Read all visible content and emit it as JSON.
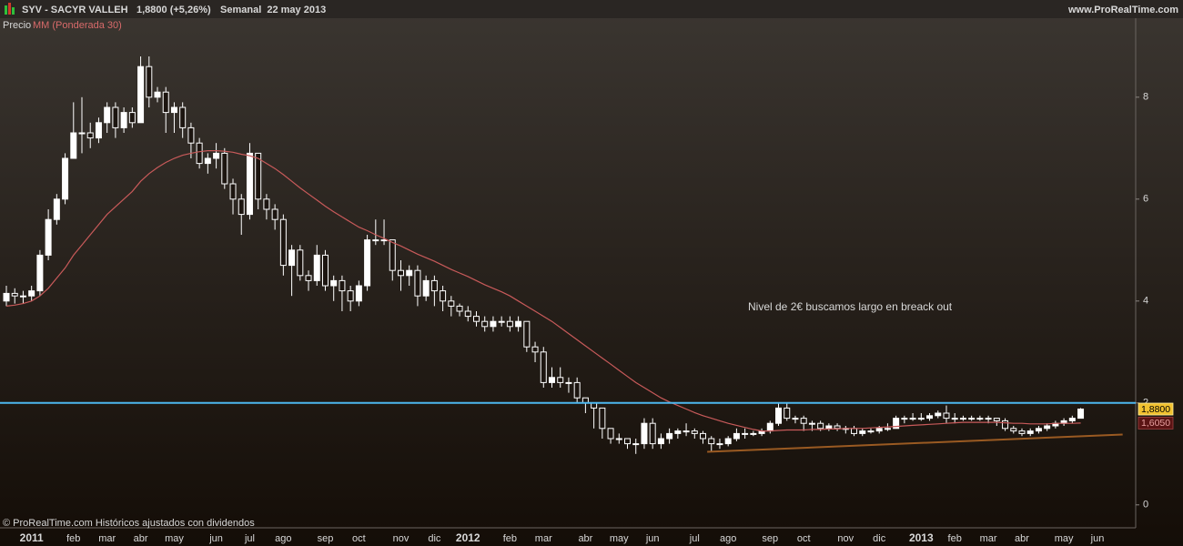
{
  "chart_data": {
    "type": "candlestick",
    "title": "SYV - SACYR VALLEH",
    "subtitle": "1,8800 (+5,26%)",
    "period": "Semanal  22 may 2013",
    "source": "www.ProRealTime.com",
    "footer": "© ProRealTime.com Históricos ajustados con dividendos",
    "annotation": "Nivel de 2€ buscamos largo en breack out",
    "categories": [
      null,
      null,
      null,
      "2011",
      null,
      null,
      null,
      null,
      "feb",
      null,
      null,
      null,
      "mar",
      null,
      null,
      null,
      "abr",
      null,
      null,
      null,
      "may",
      null,
      null,
      null,
      null,
      "jun",
      null,
      null,
      null,
      "jul",
      null,
      null,
      null,
      "ago",
      null,
      null,
      null,
      null,
      "sep",
      null,
      null,
      null,
      "oct",
      null,
      null,
      null,
      null,
      "nov",
      null,
      null,
      null,
      "dic",
      null,
      null,
      null,
      "2012",
      null,
      null,
      null,
      null,
      "feb",
      null,
      null,
      null,
      "mar",
      null,
      null,
      null,
      null,
      "abr",
      null,
      null,
      null,
      "may",
      null,
      null,
      null,
      "jun",
      null,
      null,
      null,
      null,
      "jul",
      null,
      null,
      null,
      "ago",
      null,
      null,
      null,
      null,
      "sep",
      null,
      null,
      null,
      "oct",
      null,
      null,
      null,
      null,
      "nov",
      null,
      null,
      null,
      "dic",
      null,
      null,
      null,
      null,
      "2013",
      null,
      null,
      null,
      "feb",
      null,
      null,
      null,
      "mar",
      null,
      null,
      null,
      "abr",
      null,
      null,
      null,
      null,
      "may",
      null,
      null,
      null,
      "jun"
    ],
    "series": [
      {
        "name": "Precio",
        "color": "#ffffff",
        "open": [
          4.0,
          4.15,
          4.1,
          4.1,
          4.2,
          4.9,
          5.6,
          6.0,
          6.8,
          7.3,
          7.3,
          7.2,
          7.5,
          7.8,
          7.4,
          7.7,
          7.5,
          8.6,
          8.0,
          8.1,
          7.7,
          7.8,
          7.4,
          7.1,
          6.7,
          6.8,
          6.9,
          6.3,
          6.0,
          5.7,
          6.9,
          6.0,
          5.8,
          5.6,
          4.7,
          5.0,
          4.5,
          4.4,
          4.9,
          4.3,
          4.4,
          4.2,
          4.0,
          4.3,
          5.2,
          5.2,
          5.2,
          4.6,
          4.5,
          4.6,
          4.1,
          4.4,
          4.2,
          4.0,
          3.9,
          3.8,
          3.7,
          3.6,
          3.5,
          3.6,
          3.6,
          3.5,
          3.6,
          3.1,
          3.0,
          2.4,
          2.5,
          2.4,
          2.4,
          2.1,
          2.0,
          1.9,
          1.5,
          1.3,
          1.3,
          1.2,
          1.2,
          1.6,
          1.2,
          1.3,
          1.4,
          1.45,
          1.45,
          1.4,
          1.3,
          1.2,
          1.2,
          1.3,
          1.4,
          1.4,
          1.4,
          1.45,
          1.6,
          1.9,
          1.7,
          1.7,
          1.6,
          1.6,
          1.5,
          1.55,
          1.5,
          1.5,
          1.4,
          1.45,
          1.45,
          1.5,
          1.5,
          1.7,
          1.7,
          1.7,
          1.7,
          1.75,
          1.8,
          1.7,
          1.7,
          1.7,
          1.7,
          1.7,
          1.7,
          1.65,
          1.5,
          1.45,
          1.4,
          1.45,
          1.5,
          1.55,
          1.6,
          1.65,
          1.7,
          null,
          null
        ],
        "high": [
          4.3,
          4.25,
          4.2,
          4.3,
          5.0,
          5.8,
          6.1,
          6.9,
          7.9,
          8.0,
          7.5,
          7.6,
          7.9,
          7.9,
          7.8,
          7.8,
          8.8,
          8.8,
          8.2,
          8.2,
          7.9,
          7.9,
          7.5,
          7.2,
          6.9,
          7.1,
          7.0,
          6.4,
          6.1,
          7.1,
          6.9,
          6.1,
          5.9,
          5.7,
          5.1,
          5.1,
          4.6,
          5.1,
          5.0,
          4.5,
          4.5,
          4.3,
          4.4,
          5.3,
          5.6,
          5.6,
          5.2,
          4.8,
          4.7,
          4.7,
          4.5,
          4.5,
          4.3,
          4.1,
          3.95,
          3.9,
          3.8,
          3.7,
          3.7,
          3.7,
          3.7,
          3.7,
          3.6,
          3.2,
          3.1,
          2.7,
          2.7,
          2.5,
          2.5,
          2.1,
          2.0,
          1.9,
          1.5,
          1.4,
          1.3,
          1.3,
          1.7,
          1.7,
          1.4,
          1.5,
          1.5,
          1.6,
          1.5,
          1.45,
          1.35,
          1.3,
          1.35,
          1.5,
          1.5,
          1.45,
          1.5,
          1.65,
          2.0,
          2.0,
          1.75,
          1.75,
          1.65,
          1.65,
          1.6,
          1.6,
          1.55,
          1.55,
          1.5,
          1.5,
          1.55,
          1.6,
          1.75,
          1.75,
          1.8,
          1.8,
          1.8,
          1.85,
          1.95,
          1.8,
          1.75,
          1.75,
          1.75,
          1.75,
          1.7,
          1.7,
          1.55,
          1.5,
          1.5,
          1.55,
          1.6,
          1.65,
          1.7,
          1.75,
          1.9,
          null,
          null
        ],
        "low": [
          3.9,
          3.95,
          3.95,
          4.0,
          4.1,
          4.8,
          5.5,
          5.9,
          6.8,
          6.9,
          7.0,
          7.1,
          7.3,
          7.2,
          7.3,
          7.4,
          7.5,
          7.8,
          7.9,
          7.3,
          7.3,
          7.2,
          6.8,
          6.6,
          6.5,
          6.6,
          6.2,
          5.7,
          5.3,
          5.6,
          5.8,
          5.6,
          5.4,
          4.5,
          4.1,
          4.4,
          4.2,
          4.3,
          4.2,
          4.0,
          3.8,
          3.8,
          3.9,
          4.2,
          5.1,
          5.1,
          4.4,
          4.2,
          4.3,
          3.9,
          4.0,
          3.9,
          3.8,
          3.7,
          3.7,
          3.6,
          3.5,
          3.4,
          3.4,
          3.5,
          3.4,
          3.4,
          3.0,
          2.8,
          2.3,
          2.3,
          2.3,
          2.2,
          2.0,
          1.8,
          1.5,
          1.3,
          1.2,
          1.2,
          1.1,
          1.0,
          1.1,
          1.1,
          1.1,
          1.2,
          1.3,
          1.35,
          1.3,
          1.2,
          1.05,
          1.1,
          1.15,
          1.25,
          1.3,
          1.35,
          1.35,
          1.4,
          1.55,
          1.65,
          1.6,
          1.45,
          1.45,
          1.45,
          1.45,
          1.45,
          1.4,
          1.35,
          1.35,
          1.4,
          1.4,
          1.45,
          1.5,
          1.6,
          1.65,
          1.65,
          1.65,
          1.7,
          1.6,
          1.6,
          1.65,
          1.65,
          1.65,
          1.6,
          1.55,
          1.45,
          1.4,
          1.35,
          1.35,
          1.4,
          1.45,
          1.5,
          1.55,
          1.6,
          1.7,
          null,
          null
        ],
        "close": [
          4.15,
          4.1,
          4.1,
          4.2,
          4.9,
          5.6,
          6.0,
          6.8,
          7.3,
          7.3,
          7.2,
          7.5,
          7.8,
          7.4,
          7.7,
          7.5,
          8.6,
          8.0,
          8.1,
          7.7,
          7.8,
          7.4,
          7.1,
          6.7,
          6.8,
          6.9,
          6.3,
          6.0,
          5.7,
          6.9,
          6.0,
          5.8,
          5.6,
          4.7,
          5.0,
          4.5,
          4.4,
          4.9,
          4.3,
          4.4,
          4.2,
          4.0,
          4.3,
          5.2,
          5.2,
          5.2,
          4.6,
          4.5,
          4.6,
          4.1,
          4.4,
          4.2,
          4.0,
          3.9,
          3.8,
          3.7,
          3.6,
          3.5,
          3.6,
          3.6,
          3.5,
          3.6,
          3.1,
          3.0,
          2.4,
          2.5,
          2.4,
          2.4,
          2.1,
          2.0,
          1.9,
          1.5,
          1.3,
          1.3,
          1.2,
          1.2,
          1.6,
          1.2,
          1.3,
          1.4,
          1.45,
          1.45,
          1.4,
          1.3,
          1.2,
          1.2,
          1.3,
          1.4,
          1.4,
          1.4,
          1.45,
          1.6,
          1.9,
          1.7,
          1.7,
          1.6,
          1.6,
          1.5,
          1.55,
          1.5,
          1.5,
          1.4,
          1.45,
          1.45,
          1.5,
          1.5,
          1.7,
          1.7,
          1.7,
          1.7,
          1.75,
          1.8,
          1.7,
          1.7,
          1.7,
          1.7,
          1.7,
          1.7,
          1.65,
          1.5,
          1.45,
          1.4,
          1.45,
          1.5,
          1.55,
          1.6,
          1.65,
          1.7,
          1.88,
          null,
          null
        ]
      },
      {
        "name": "MM (Ponderada 30)",
        "type": "line",
        "color": "#c85a5a",
        "values": [
          3.9,
          3.92,
          3.95,
          4.0,
          4.1,
          4.25,
          4.45,
          4.65,
          4.9,
          5.1,
          5.3,
          5.5,
          5.7,
          5.85,
          6.0,
          6.15,
          6.35,
          6.5,
          6.62,
          6.72,
          6.8,
          6.86,
          6.9,
          6.93,
          6.95,
          6.95,
          6.94,
          6.92,
          6.88,
          6.85,
          6.8,
          6.7,
          6.6,
          6.48,
          6.35,
          6.22,
          6.1,
          5.98,
          5.86,
          5.75,
          5.65,
          5.55,
          5.45,
          5.38,
          5.3,
          5.23,
          5.15,
          5.08,
          5.0,
          4.92,
          4.85,
          4.78,
          4.7,
          4.62,
          4.55,
          4.48,
          4.4,
          4.32,
          4.25,
          4.18,
          4.1,
          4.0,
          3.9,
          3.8,
          3.7,
          3.6,
          3.48,
          3.36,
          3.24,
          3.12,
          3.0,
          2.88,
          2.76,
          2.64,
          2.52,
          2.4,
          2.3,
          2.2,
          2.1,
          2.02,
          1.95,
          1.88,
          1.81,
          1.75,
          1.7,
          1.65,
          1.6,
          1.56,
          1.52,
          1.48,
          1.45,
          1.45,
          1.46,
          1.47,
          1.47,
          1.47,
          1.48,
          1.48,
          1.49,
          1.49,
          1.5,
          1.5,
          1.5,
          1.51,
          1.52,
          1.53,
          1.54,
          1.55,
          1.56,
          1.57,
          1.58,
          1.59,
          1.6,
          1.61,
          1.62,
          1.62,
          1.62,
          1.62,
          1.62,
          1.61,
          1.6,
          1.6,
          1.59,
          1.59,
          1.59,
          1.6,
          1.6,
          1.6,
          1.605,
          null,
          null
        ]
      }
    ],
    "ylim": [
      -0.45,
      9.55
    ],
    "yticks": [
      0,
      2,
      4,
      6,
      8
    ],
    "hlines": [
      {
        "value": 2,
        "color": "#4db8f0"
      }
    ],
    "trendline": {
      "x": [
        83.5,
        133
      ],
      "y": [
        1.04,
        1.38
      ],
      "color": "#9a5a22"
    },
    "price_labels": [
      {
        "value": 1.88,
        "label": "1,8800",
        "color": "#f2c230"
      },
      {
        "value": 1.605,
        "label": "1,6050",
        "color": "#5a1414"
      }
    ]
  }
}
